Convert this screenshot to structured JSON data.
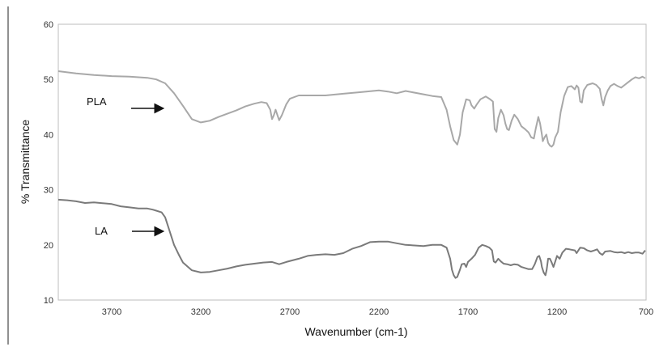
{
  "chart_data": {
    "type": "line",
    "title": "",
    "xlabel": "Wavenumber (cm-1)",
    "ylabel": "% Transmittance",
    "xlim": [
      4000,
      700
    ],
    "ylim": [
      10,
      60
    ],
    "x_reversed": true,
    "xticks": [
      3700,
      3200,
      2700,
      2200,
      1700,
      1200,
      700
    ],
    "yticks": [
      10,
      20,
      30,
      40,
      50,
      60
    ],
    "grid": false,
    "legend": "none",
    "annotations": [
      {
        "text": "PLA",
        "series": "PLA",
        "arrow": "right"
      },
      {
        "text": "LA",
        "series": "LA",
        "arrow": "right"
      }
    ],
    "series": [
      {
        "name": "PLA",
        "color": "#a8a8a8",
        "points": [
          [
            4000,
            51.5
          ],
          [
            3900,
            51.1
          ],
          [
            3800,
            50.8
          ],
          [
            3700,
            50.6
          ],
          [
            3600,
            50.5
          ],
          [
            3500,
            50.3
          ],
          [
            3450,
            50.0
          ],
          [
            3400,
            49.3
          ],
          [
            3350,
            47.5
          ],
          [
            3300,
            45.2
          ],
          [
            3250,
            42.8
          ],
          [
            3200,
            42.2
          ],
          [
            3150,
            42.5
          ],
          [
            3100,
            43.2
          ],
          [
            3000,
            44.4
          ],
          [
            2950,
            45.1
          ],
          [
            2900,
            45.6
          ],
          [
            2860,
            45.9
          ],
          [
            2830,
            45.7
          ],
          [
            2810,
            44.5
          ],
          [
            2800,
            42.8
          ],
          [
            2790,
            43.5
          ],
          [
            2780,
            44.5
          ],
          [
            2760,
            42.6
          ],
          [
            2745,
            43.5
          ],
          [
            2720,
            45.5
          ],
          [
            2700,
            46.5
          ],
          [
            2650,
            47.1
          ],
          [
            2500,
            47.1
          ],
          [
            2400,
            47.4
          ],
          [
            2300,
            47.7
          ],
          [
            2200,
            48.0
          ],
          [
            2150,
            47.8
          ],
          [
            2100,
            47.5
          ],
          [
            2050,
            47.9
          ],
          [
            1950,
            47.3
          ],
          [
            1900,
            47.0
          ],
          [
            1850,
            46.8
          ],
          [
            1820,
            44.5
          ],
          [
            1800,
            41.5
          ],
          [
            1780,
            39.0
          ],
          [
            1760,
            38.2
          ],
          [
            1745,
            40.0
          ],
          [
            1730,
            44.0
          ],
          [
            1710,
            46.4
          ],
          [
            1690,
            46.2
          ],
          [
            1680,
            45.3
          ],
          [
            1665,
            44.7
          ],
          [
            1650,
            45.5
          ],
          [
            1630,
            46.4
          ],
          [
            1600,
            46.9
          ],
          [
            1580,
            46.5
          ],
          [
            1560,
            46.0
          ],
          [
            1550,
            41.0
          ],
          [
            1540,
            40.5
          ],
          [
            1530,
            43.0
          ],
          [
            1515,
            44.5
          ],
          [
            1500,
            43.5
          ],
          [
            1490,
            42.0
          ],
          [
            1480,
            41.0
          ],
          [
            1470,
            40.8
          ],
          [
            1455,
            42.5
          ],
          [
            1440,
            43.6
          ],
          [
            1420,
            42.8
          ],
          [
            1400,
            41.5
          ],
          [
            1380,
            41.0
          ],
          [
            1360,
            40.4
          ],
          [
            1345,
            39.5
          ],
          [
            1330,
            39.3
          ],
          [
            1320,
            41.0
          ],
          [
            1305,
            43.2
          ],
          [
            1295,
            42.0
          ],
          [
            1285,
            40.0
          ],
          [
            1280,
            38.8
          ],
          [
            1270,
            39.5
          ],
          [
            1260,
            40.0
          ],
          [
            1250,
            38.5
          ],
          [
            1240,
            38.0
          ],
          [
            1230,
            37.8
          ],
          [
            1220,
            38.2
          ],
          [
            1210,
            39.5
          ],
          [
            1195,
            40.5
          ],
          [
            1180,
            44.0
          ],
          [
            1160,
            47.0
          ],
          [
            1140,
            48.6
          ],
          [
            1120,
            48.8
          ],
          [
            1100,
            48.2
          ],
          [
            1090,
            48.9
          ],
          [
            1080,
            48.5
          ],
          [
            1070,
            46.0
          ],
          [
            1060,
            45.8
          ],
          [
            1050,
            48.0
          ],
          [
            1030,
            49.0
          ],
          [
            1000,
            49.3
          ],
          [
            980,
            49.0
          ],
          [
            960,
            48.3
          ],
          [
            950,
            46.5
          ],
          [
            940,
            45.3
          ],
          [
            930,
            46.8
          ],
          [
            915,
            48.0
          ],
          [
            900,
            48.8
          ],
          [
            880,
            49.2
          ],
          [
            860,
            48.8
          ],
          [
            840,
            48.5
          ],
          [
            820,
            49.0
          ],
          [
            800,
            49.5
          ],
          [
            780,
            50.0
          ],
          [
            760,
            50.4
          ],
          [
            740,
            50.2
          ],
          [
            720,
            50.5
          ],
          [
            705,
            50.2
          ]
        ]
      },
      {
        "name": "LA",
        "color": "#7a7a7a",
        "points": [
          [
            4000,
            28.2
          ],
          [
            3950,
            28.1
          ],
          [
            3900,
            27.9
          ],
          [
            3850,
            27.6
          ],
          [
            3800,
            27.7
          ],
          [
            3700,
            27.4
          ],
          [
            3650,
            27.0
          ],
          [
            3600,
            26.8
          ],
          [
            3550,
            26.6
          ],
          [
            3500,
            26.6
          ],
          [
            3470,
            26.4
          ],
          [
            3450,
            26.2
          ],
          [
            3420,
            25.9
          ],
          [
            3400,
            25.0
          ],
          [
            3380,
            23.0
          ],
          [
            3350,
            20.0
          ],
          [
            3320,
            18.0
          ],
          [
            3300,
            16.8
          ],
          [
            3250,
            15.4
          ],
          [
            3200,
            15.0
          ],
          [
            3150,
            15.1
          ],
          [
            3100,
            15.4
          ],
          [
            3050,
            15.7
          ],
          [
            3000,
            16.1
          ],
          [
            2950,
            16.4
          ],
          [
            2900,
            16.6
          ],
          [
            2850,
            16.8
          ],
          [
            2800,
            16.9
          ],
          [
            2760,
            16.5
          ],
          [
            2720,
            16.9
          ],
          [
            2650,
            17.5
          ],
          [
            2600,
            18.0
          ],
          [
            2550,
            18.2
          ],
          [
            2500,
            18.3
          ],
          [
            2450,
            18.2
          ],
          [
            2400,
            18.5
          ],
          [
            2350,
            19.3
          ],
          [
            2300,
            19.8
          ],
          [
            2250,
            20.5
          ],
          [
            2200,
            20.6
          ],
          [
            2150,
            20.6
          ],
          [
            2100,
            20.3
          ],
          [
            2050,
            20.0
          ],
          [
            2000,
            19.9
          ],
          [
            1950,
            19.8
          ],
          [
            1900,
            20.0
          ],
          [
            1850,
            20.0
          ],
          [
            1820,
            19.5
          ],
          [
            1800,
            17.5
          ],
          [
            1790,
            15.5
          ],
          [
            1780,
            14.5
          ],
          [
            1770,
            14.0
          ],
          [
            1760,
            14.2
          ],
          [
            1745,
            15.5
          ],
          [
            1735,
            16.5
          ],
          [
            1720,
            16.6
          ],
          [
            1710,
            16.0
          ],
          [
            1700,
            16.9
          ],
          [
            1680,
            17.5
          ],
          [
            1660,
            18.2
          ],
          [
            1640,
            19.5
          ],
          [
            1620,
            20.0
          ],
          [
            1600,
            19.8
          ],
          [
            1580,
            19.5
          ],
          [
            1565,
            19.0
          ],
          [
            1555,
            17.0
          ],
          [
            1545,
            16.8
          ],
          [
            1530,
            17.5
          ],
          [
            1515,
            17.0
          ],
          [
            1500,
            16.6
          ],
          [
            1480,
            16.5
          ],
          [
            1460,
            16.3
          ],
          [
            1440,
            16.5
          ],
          [
            1420,
            16.4
          ],
          [
            1400,
            16.0
          ],
          [
            1380,
            15.8
          ],
          [
            1360,
            15.6
          ],
          [
            1340,
            15.6
          ],
          [
            1325,
            16.5
          ],
          [
            1310,
            17.8
          ],
          [
            1300,
            18.0
          ],
          [
            1290,
            17.0
          ],
          [
            1285,
            16.0
          ],
          [
            1275,
            15.0
          ],
          [
            1265,
            14.5
          ],
          [
            1258,
            15.5
          ],
          [
            1250,
            17.5
          ],
          [
            1240,
            17.5
          ],
          [
            1230,
            16.8
          ],
          [
            1220,
            16.0
          ],
          [
            1210,
            17.0
          ],
          [
            1200,
            18.0
          ],
          [
            1185,
            17.5
          ],
          [
            1170,
            18.6
          ],
          [
            1150,
            19.3
          ],
          [
            1130,
            19.2
          ],
          [
            1100,
            19.0
          ],
          [
            1090,
            18.5
          ],
          [
            1080,
            19.0
          ],
          [
            1070,
            19.5
          ],
          [
            1050,
            19.4
          ],
          [
            1030,
            19.0
          ],
          [
            1010,
            18.8
          ],
          [
            990,
            19.0
          ],
          [
            975,
            19.2
          ],
          [
            960,
            18.5
          ],
          [
            945,
            18.2
          ],
          [
            930,
            18.8
          ],
          [
            900,
            18.9
          ],
          [
            880,
            18.7
          ],
          [
            860,
            18.6
          ],
          [
            840,
            18.7
          ],
          [
            820,
            18.5
          ],
          [
            800,
            18.7
          ],
          [
            780,
            18.5
          ],
          [
            760,
            18.6
          ],
          [
            740,
            18.6
          ],
          [
            720,
            18.4
          ],
          [
            705,
            19.0
          ]
        ]
      }
    ]
  }
}
